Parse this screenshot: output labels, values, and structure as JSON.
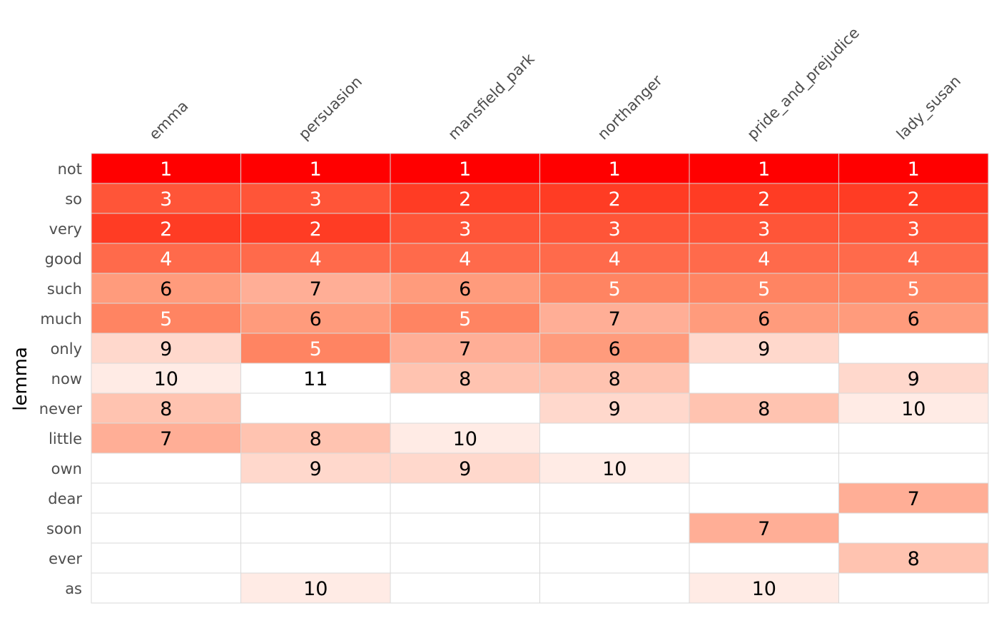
{
  "chart_data": {
    "type": "heatmap",
    "title": "",
    "xlabel": "",
    "ylabel": "lemma",
    "columns": [
      "emma",
      "persuasion",
      "mansfield_park",
      "northanger",
      "pride_and_prejudice",
      "lady_susan"
    ],
    "rows": [
      "not",
      "so",
      "very",
      "good",
      "such",
      "much",
      "only",
      "now",
      "never",
      "little",
      "own",
      "dear",
      "soon",
      "ever",
      "as"
    ],
    "values": [
      [
        1,
        1,
        1,
        1,
        1,
        1
      ],
      [
        3,
        3,
        2,
        2,
        2,
        2
      ],
      [
        2,
        2,
        3,
        3,
        3,
        3
      ],
      [
        4,
        4,
        4,
        4,
        4,
        4
      ],
      [
        6,
        7,
        6,
        5,
        5,
        5
      ],
      [
        5,
        6,
        5,
        7,
        6,
        6
      ],
      [
        9,
        5,
        7,
        6,
        9,
        null
      ],
      [
        10,
        11,
        8,
        8,
        null,
        9
      ],
      [
        8,
        null,
        null,
        9,
        8,
        10
      ],
      [
        7,
        8,
        10,
        null,
        null,
        null
      ],
      [
        null,
        9,
        9,
        10,
        null,
        null
      ],
      [
        null,
        null,
        null,
        null,
        null,
        7
      ],
      [
        null,
        null,
        null,
        null,
        7,
        null
      ],
      [
        null,
        null,
        null,
        null,
        null,
        8
      ],
      [
        null,
        10,
        null,
        null,
        10,
        null
      ]
    ],
    "color_scale": {
      "1": "#ff0000",
      "2": "#ff3c24",
      "3": "#ff5538",
      "4": "#ff6a4b",
      "5": "#ff8462",
      "6": "#ff9b7c",
      "7": "#ffae96",
      "8": "#ffc3b0",
      "9": "#ffd8cc",
      "10": "#ffebe5",
      "11": "#ffffff"
    },
    "grid_color": "#d9d9d9",
    "legend": "none"
  }
}
